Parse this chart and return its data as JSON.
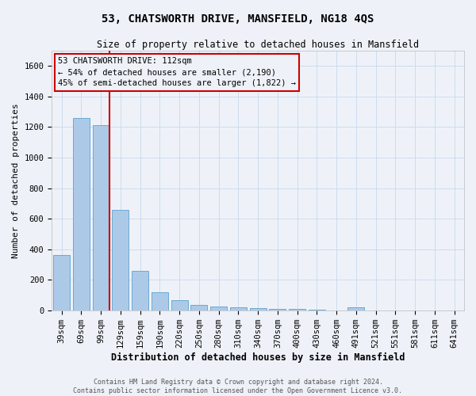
{
  "title": "53, CHATSWORTH DRIVE, MANSFIELD, NG18 4QS",
  "subtitle": "Size of property relative to detached houses in Mansfield",
  "xlabel": "Distribution of detached houses by size in Mansfield",
  "ylabel": "Number of detached properties",
  "footer_line1": "Contains HM Land Registry data © Crown copyright and database right 2024.",
  "footer_line2": "Contains public sector information licensed under the Open Government Licence v3.0.",
  "categories": [
    "39sqm",
    "69sqm",
    "99sqm",
    "129sqm",
    "159sqm",
    "190sqm",
    "220sqm",
    "250sqm",
    "280sqm",
    "310sqm",
    "340sqm",
    "370sqm",
    "400sqm",
    "430sqm",
    "460sqm",
    "491sqm",
    "521sqm",
    "551sqm",
    "581sqm",
    "611sqm",
    "641sqm"
  ],
  "values": [
    360,
    1260,
    1215,
    655,
    260,
    120,
    68,
    37,
    25,
    18,
    12,
    8,
    6,
    5,
    0,
    18,
    0,
    0,
    0,
    0,
    0
  ],
  "bar_color": "#adc9e8",
  "bar_edge_color": "#6aaad4",
  "grid_color": "#ccdcee",
  "background_color": "#eef2f8",
  "annotation_box_text": "53 CHATSWORTH DRIVE: 112sqm\n← 54% of detached houses are smaller (2,190)\n45% of semi-detached houses are larger (1,822) →",
  "vline_x_index": 2.45,
  "vline_color": "#cc0000",
  "ylim": [
    0,
    1700
  ],
  "yticks": [
    0,
    200,
    400,
    600,
    800,
    1000,
    1200,
    1400,
    1600
  ],
  "title_fontsize": 10,
  "subtitle_fontsize": 8.5,
  "xlabel_fontsize": 8.5,
  "ylabel_fontsize": 8,
  "tick_fontsize": 7.5,
  "annot_fontsize": 7.5,
  "footer_fontsize": 6
}
